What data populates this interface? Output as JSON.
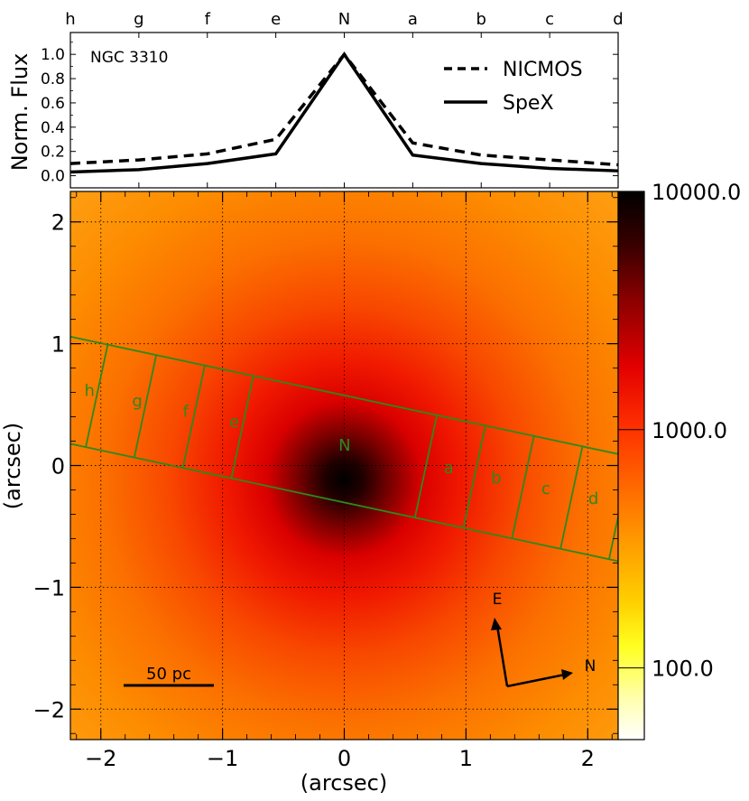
{
  "chart_data": [
    {
      "type": "line",
      "title": "",
      "annotation": "NGC 3310",
      "ylabel": "Norm. Flux",
      "xlabel": "",
      "ylim": [
        -0.1,
        1.18
      ],
      "yticks": [
        "0.0",
        "0.2",
        "0.4",
        "0.6",
        "0.8",
        "1.0"
      ],
      "categories": [
        "h",
        "g",
        "f",
        "e",
        "N",
        "a",
        "b",
        "c",
        "d"
      ],
      "legend_position": "top-right",
      "series": [
        {
          "name": "NICMOS",
          "style": "dashed",
          "values": [
            0.1,
            0.13,
            0.18,
            0.3,
            1.0,
            0.27,
            0.17,
            0.13,
            0.09
          ]
        },
        {
          "name": "SpeX",
          "style": "solid",
          "values": [
            0.03,
            0.05,
            0.1,
            0.18,
            1.0,
            0.17,
            0.1,
            0.06,
            0.04
          ]
        }
      ]
    },
    {
      "type": "heatmap",
      "title": "",
      "xlabel": "(arcsec)",
      "ylabel": "(arcsec)",
      "xlim": [
        -2.25,
        2.25
      ],
      "ylim": [
        -2.25,
        2.25
      ],
      "xticks": [
        "−2",
        "−1",
        "0",
        "1",
        "2"
      ],
      "yticks": [
        "2",
        "1",
        "0",
        "−1",
        "−2"
      ],
      "colorbar": {
        "scale": "log",
        "range": [
          50,
          10000
        ],
        "tick_labels": [
          "10000.0",
          "1000.0",
          "100.0"
        ],
        "tick_values": [
          10000,
          1000,
          100
        ]
      },
      "slit": {
        "color": "#2a8a1c",
        "aperture_labels": [
          "h",
          "g",
          "f",
          "e",
          "N",
          "a",
          "b",
          "c",
          "d"
        ]
      },
      "scale_bar_label": "50 pc",
      "compass": {
        "east_label": "E",
        "north_label": "N"
      }
    }
  ]
}
